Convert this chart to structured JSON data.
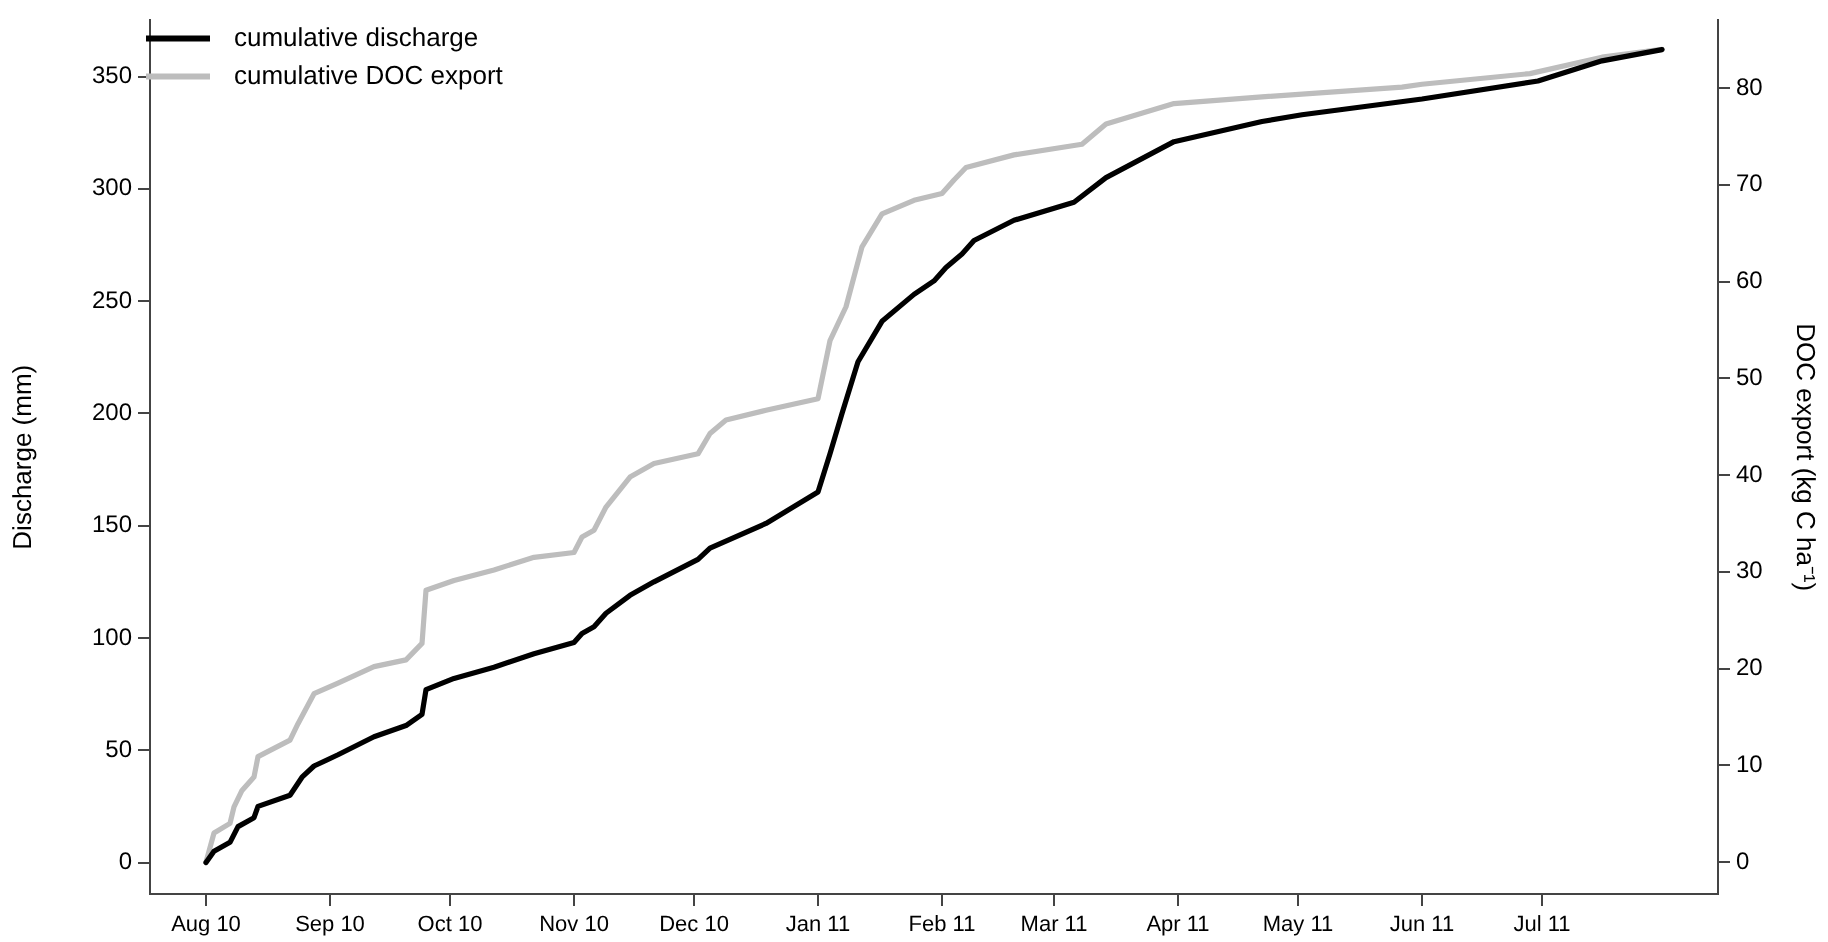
{
  "chart_data": {
    "type": "line",
    "ylabel": "Discharge (mm)",
    "y2label": "DOC export (kg C ha⁻¹)",
    "xlim": [
      "2010-07-18",
      "2011-08-14"
    ],
    "xticks": [
      {
        "value": "2010-08-01",
        "label": "Aug 10"
      },
      {
        "value": "2010-09-01",
        "label": "Sep 10"
      },
      {
        "value": "2010-10-01",
        "label": "Oct 10"
      },
      {
        "value": "2010-11-01",
        "label": "Nov 10"
      },
      {
        "value": "2010-12-01",
        "label": "Dec 10"
      },
      {
        "value": "2011-01-01",
        "label": "Jan 11"
      },
      {
        "value": "2011-02-01",
        "label": "Feb 11"
      },
      {
        "value": "2011-03-01",
        "label": "Mar 11"
      },
      {
        "value": "2011-04-01",
        "label": "Apr 11"
      },
      {
        "value": "2011-05-01",
        "label": "May 11"
      },
      {
        "value": "2011-06-01",
        "label": "Jun 11"
      },
      {
        "value": "2011-07-01",
        "label": "Jul 11"
      }
    ],
    "ylim": [
      -14,
      375
    ],
    "yticks": [
      0,
      50,
      100,
      150,
      200,
      250,
      300,
      350
    ],
    "y2lim": [
      -3.3,
      87
    ],
    "y2ticks": [
      0,
      10,
      20,
      30,
      40,
      50,
      60,
      70,
      80
    ],
    "grid": false,
    "legend": "top left",
    "marker": "none",
    "line_style": "solid",
    "series": [
      {
        "name": "cumulative discharge",
        "color": "#000000",
        "x": [
          "2010-08-01",
          "2010-08-03",
          "2010-08-07",
          "2010-08-09",
          "2010-08-13",
          "2010-08-14",
          "2010-08-22",
          "2010-08-25",
          "2010-08-28",
          "2010-09-03",
          "2010-09-12",
          "2010-09-20",
          "2010-09-24",
          "2010-09-25",
          "2010-10-02",
          "2010-10-12",
          "2010-10-22",
          "2010-11-01",
          "2010-11-03",
          "2010-11-06",
          "2010-11-09",
          "2010-11-15",
          "2010-11-21",
          "2010-12-02",
          "2010-12-05",
          "2010-12-19",
          "2011-01-01",
          "2011-01-04",
          "2011-01-07",
          "2011-01-11",
          "2011-01-17",
          "2011-01-25",
          "2011-01-30",
          "2011-02-02",
          "2011-02-06",
          "2011-02-09",
          "2011-02-19",
          "2011-03-06",
          "2011-03-14",
          "2011-03-31",
          "2011-04-22",
          "2011-05-02",
          "2011-06-01",
          "2011-06-30",
          "2011-07-16",
          "2011-07-31"
        ],
        "values": [
          0,
          5,
          9,
          16,
          20,
          25,
          30,
          38,
          43,
          48,
          56,
          61,
          66,
          77,
          82,
          87,
          93,
          98,
          102,
          105,
          111,
          119,
          125,
          135,
          140,
          151,
          165,
          182,
          200,
          223,
          241,
          253,
          259,
          265,
          271,
          277,
          286,
          294,
          305,
          321,
          330,
          333,
          340,
          348,
          357,
          362
        ]
      },
      {
        "name": "cumulative DOC export",
        "color": "#bdbdbd",
        "axis": "y2",
        "x": [
          "2010-08-01",
          "2010-08-03",
          "2010-08-07",
          "2010-08-08",
          "2010-08-10",
          "2010-08-13",
          "2010-08-14",
          "2010-08-22",
          "2010-08-24",
          "2010-08-28",
          "2010-09-03",
          "2010-09-12",
          "2010-09-20",
          "2010-09-24",
          "2010-09-25",
          "2010-10-02",
          "2010-10-12",
          "2010-10-22",
          "2010-11-01",
          "2010-11-03",
          "2010-11-06",
          "2010-11-09",
          "2010-11-15",
          "2010-11-21",
          "2010-12-02",
          "2010-12-05",
          "2010-12-09",
          "2010-12-19",
          "2011-01-01",
          "2011-01-04",
          "2011-01-08",
          "2011-01-12",
          "2011-01-17",
          "2011-01-25",
          "2011-02-01",
          "2011-02-04",
          "2011-02-07",
          "2011-02-19",
          "2011-03-08",
          "2011-03-14",
          "2011-03-31",
          "2011-04-22",
          "2011-05-27",
          "2011-06-01",
          "2011-06-28",
          "2011-07-16",
          "2011-07-31"
        ],
        "values": [
          0,
          3.0,
          4.0,
          5.7,
          7.4,
          8.8,
          10.9,
          12.6,
          14.3,
          17.4,
          18.5,
          20.2,
          20.9,
          22.6,
          28.1,
          29.1,
          30.2,
          31.5,
          32.0,
          33.6,
          34.3,
          36.7,
          39.8,
          41.2,
          42.2,
          44.3,
          45.7,
          46.7,
          47.9,
          53.9,
          57.4,
          63.6,
          67.0,
          68.4,
          69.1,
          70.5,
          71.8,
          73.1,
          74.2,
          76.3,
          78.4,
          79.1,
          80.1,
          80.4,
          81.5,
          83.2,
          84.0
        ]
      }
    ]
  }
}
